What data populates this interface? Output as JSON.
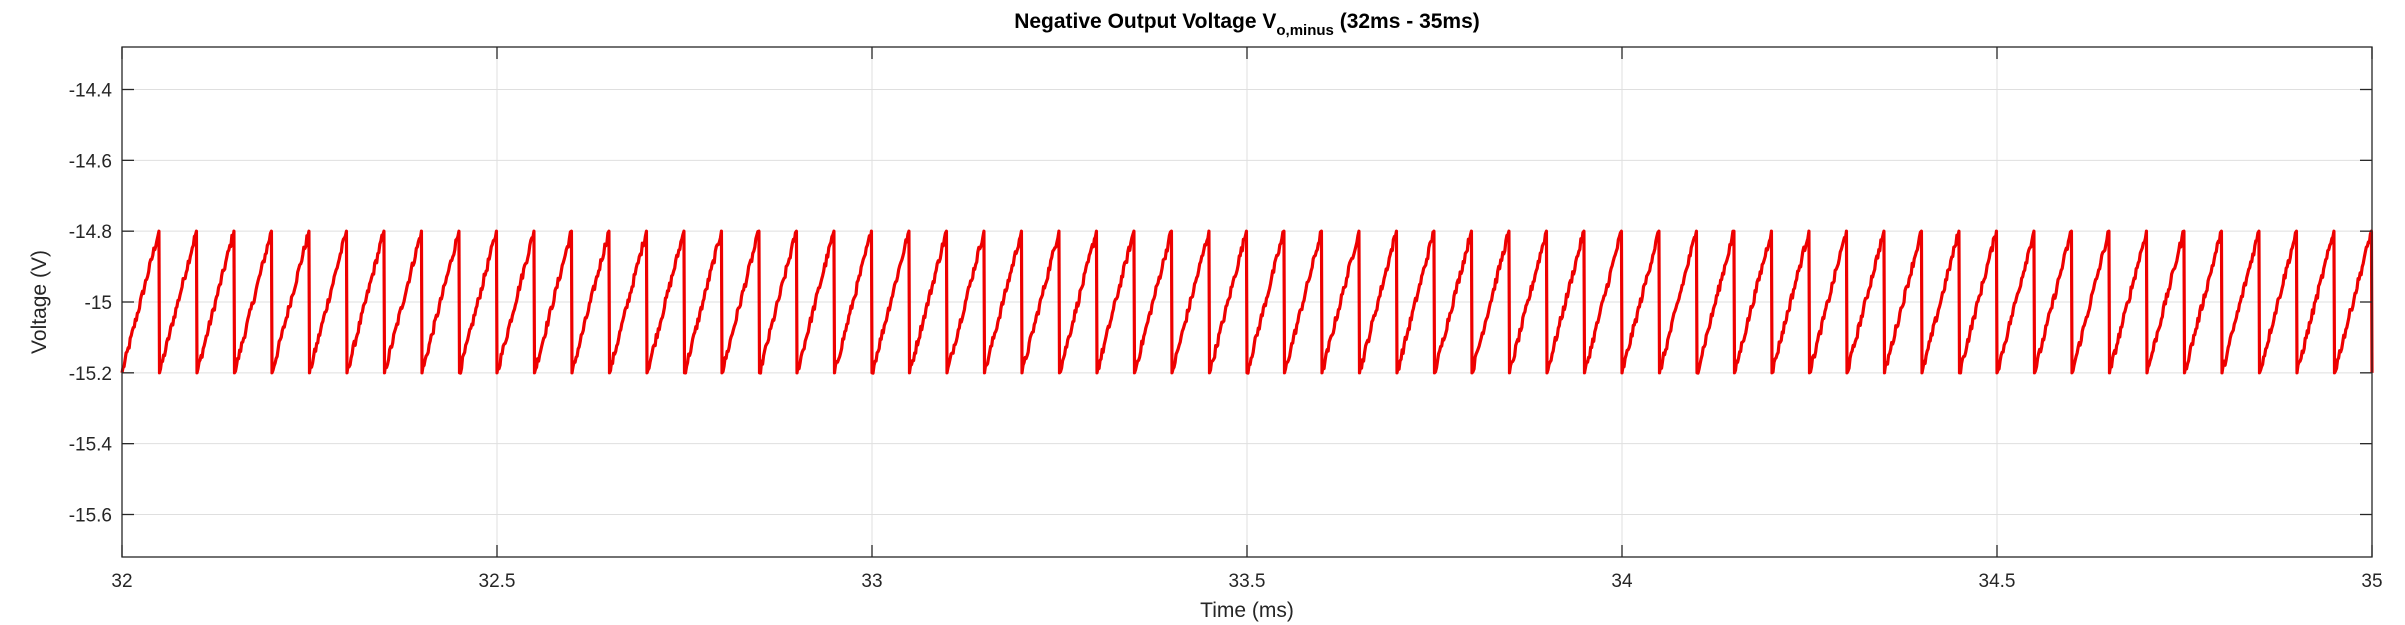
{
  "chart_data": {
    "type": "line",
    "title": {
      "main": "Negative Output Voltage V",
      "subscript": "o,minus",
      "suffix": " (32ms - 35ms)"
    },
    "xlabel": "Time (ms)",
    "ylabel": "Voltage (V)",
    "xlim": [
      32,
      35
    ],
    "ylim": [
      -15.72,
      -14.28
    ],
    "xticks": [
      32,
      32.5,
      33,
      33.5,
      34,
      34.5,
      35
    ],
    "xtick_labels": [
      "32",
      "32.5",
      "33",
      "33.5",
      "34",
      "34.5",
      "35"
    ],
    "yticks": [
      -15.6,
      -15.4,
      -15.2,
      -15,
      -14.8,
      -14.6,
      -14.4
    ],
    "ytick_labels": [
      "-15.6",
      "-15.4",
      "-15.2",
      "-15",
      "-14.8",
      "-14.6",
      "-14.4"
    ],
    "grid": true,
    "legend": "none",
    "series": [
      {
        "color": "#ee0000",
        "waveform": "sawtooth",
        "period_ms": 0.05,
        "y_min": -15.2,
        "y_max": -14.8,
        "phase_ms": 0.05,
        "ripple_noise_v": 0.012
      }
    ]
  },
  "colors": {
    "axis": "#262626",
    "grid": "#dfdfdf",
    "series": "#ee0000",
    "background": "#ffffff"
  }
}
